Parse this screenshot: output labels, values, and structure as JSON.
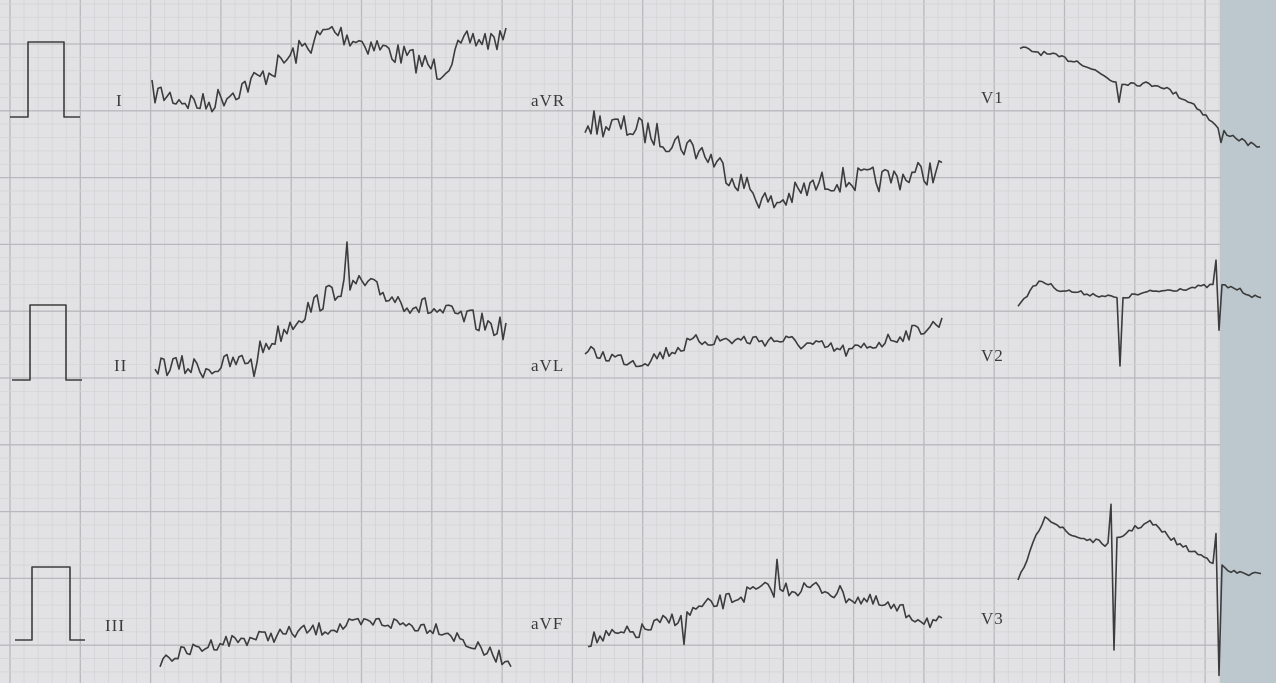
{
  "leads": [
    {
      "label": "I"
    },
    {
      "label": "aVR"
    },
    {
      "label": "V1"
    },
    {
      "label": "II"
    },
    {
      "label": "aVL"
    },
    {
      "label": "V2"
    },
    {
      "label": "III"
    },
    {
      "label": "aVF"
    },
    {
      "label": "V3"
    }
  ]
}
